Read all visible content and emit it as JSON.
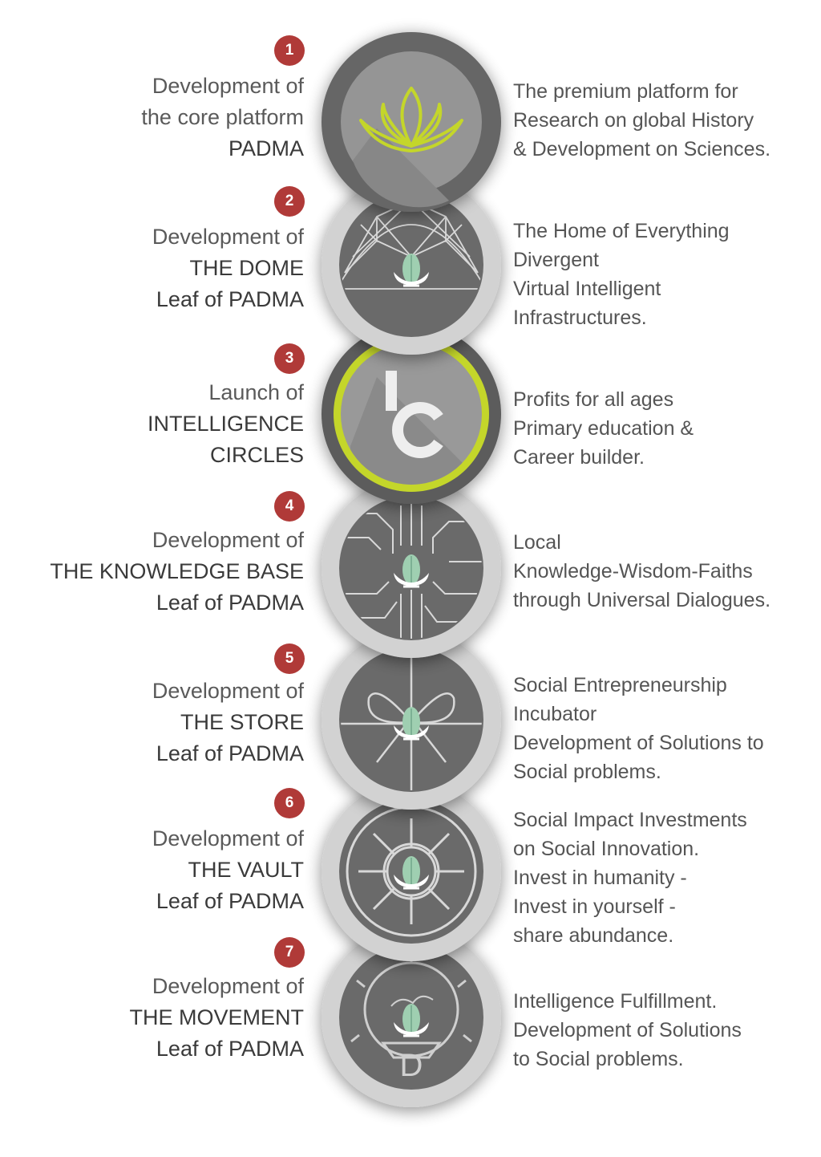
{
  "steps": [
    {
      "number": "1",
      "left": [
        "Development of",
        "the core platform",
        "PADMA"
      ],
      "right": [
        "The premium platform for",
        "Research on global History",
        "& Development on Sciences."
      ],
      "icon": "lotus-icon"
    },
    {
      "number": "2",
      "left": [
        "Development of",
        "THE DOME",
        "Leaf of PADMA"
      ],
      "right": [
        "The Home of Everything",
        "Divergent",
        "Virtual Intelligent",
        "Infrastructures."
      ],
      "icon": "geodesic-dome-icon"
    },
    {
      "number": "3",
      "left": [
        "Launch of",
        "INTELLIGENCE",
        "CIRCLES"
      ],
      "right": [
        "Profits for all ages",
        "Primary education &",
        "Career builder."
      ],
      "icon": "ic-monogram-icon",
      "monogram": "IC"
    },
    {
      "number": "4",
      "left": [
        "Development of",
        "THE KNOWLEDGE BASE",
        "Leaf of PADMA"
      ],
      "right": [
        "Local",
        "Knowledge-Wisdom-Faiths",
        "through Universal Dialogues."
      ],
      "icon": "circuit-board-icon"
    },
    {
      "number": "5",
      "left": [
        "Development of",
        "THE STORE",
        "Leaf of PADMA"
      ],
      "right": [
        "Social Entrepreneurship",
        "Incubator",
        "Development of Solutions to",
        "Social problems."
      ],
      "icon": "gift-ribbon-icon"
    },
    {
      "number": "6",
      "left": [
        "Development of",
        "THE VAULT",
        "Leaf of PADMA"
      ],
      "right": [
        "Social Impact Investments",
        "on Social Innovation.",
        "Invest in humanity -",
        "Invest in yourself -",
        "share abundance."
      ],
      "icon": "vault-dial-icon"
    },
    {
      "number": "7",
      "left": [
        "Development of",
        "THE MOVEMENT",
        "Leaf of PADMA"
      ],
      "right": [
        "Intelligence Fulfillment.",
        "Development of Solutions",
        "to Social problems."
      ],
      "icon": "movement-lamp-icon",
      "monogram": "D"
    }
  ],
  "colors": {
    "badge": "#b03a38",
    "accent_green": "#c4d62c",
    "leaf_green": "#9fcfb1",
    "disc_dark": "#6b6b6b",
    "disc_ring": "#d4d4d4"
  }
}
